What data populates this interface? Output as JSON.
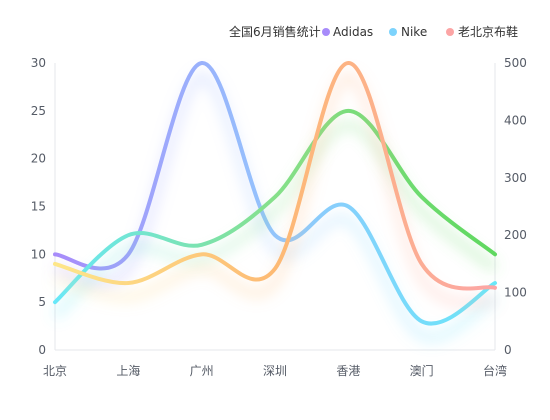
{
  "chart_data": {
    "type": "line",
    "smooth": true,
    "title": "全国6月销售统计",
    "categories": [
      "北京",
      "上海",
      "广州",
      "深圳",
      "香港",
      "澳门",
      "台湾"
    ],
    "y_left": {
      "min": 0,
      "max": 30,
      "ticks": [
        0,
        5,
        10,
        15,
        20,
        25,
        30
      ]
    },
    "y_right": {
      "min": 0,
      "max": 500,
      "ticks": [
        0,
        100,
        200,
        300,
        400,
        500
      ]
    },
    "grid": false,
    "legend_position": "top-right",
    "series": [
      {
        "name": "Adidas",
        "axis": "left",
        "values": [
          10,
          10,
          30,
          12,
          15,
          3,
          7
        ],
        "gradient": [
          "#a78bfa",
          "#93c5fd",
          "#67e8f9"
        ],
        "legend_color": "#a78bfa"
      },
      {
        "name": "Nike",
        "axis": "left",
        "values": [
          5,
          12,
          11,
          16,
          25,
          16,
          10
        ],
        "gradient": [
          "#67e8f9",
          "#86e08a",
          "#5fd85f"
        ],
        "legend_color": "#7dd3fc"
      },
      {
        "name": "老北京布鞋",
        "axis": "left",
        "values": [
          9,
          7,
          10,
          8.5,
          30,
          9,
          6.5
        ],
        "gradient": [
          "#fde68a",
          "#fdba74",
          "#fca5a5"
        ],
        "legend_color": "#fca5a5"
      }
    ]
  }
}
